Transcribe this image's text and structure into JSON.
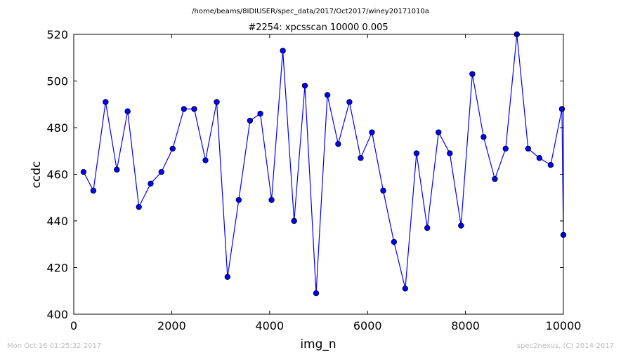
{
  "chart_data": {
    "type": "line",
    "suptitle": "/home/beams/8IDIUSER/spec_data/2017/Oct2017/winey20171010a",
    "title": "#2254: xpcsscan 10000 0.005",
    "xlabel": "img_n",
    "ylabel": "ccdc",
    "xlim": [
      0,
      10000
    ],
    "ylim": [
      400,
      520
    ],
    "xticks": [
      "0",
      "2000",
      "4000",
      "6000",
      "8000",
      "10000"
    ],
    "yticks": [
      "400",
      "420",
      "440",
      "460",
      "480",
      "500",
      "520"
    ],
    "grid": false,
    "series": [
      {
        "color": "#0000ff",
        "marker": "circle",
        "x": [
          200,
          400,
          650,
          880,
          1100,
          1330,
          1570,
          1790,
          2020,
          2250,
          2460,
          2690,
          2920,
          3140,
          3370,
          3600,
          3810,
          4040,
          4270,
          4500,
          4720,
          4950,
          5180,
          5400,
          5630,
          5860,
          6090,
          6320,
          6540,
          6770,
          7000,
          7220,
          7450,
          7680,
          7910,
          8140,
          8370,
          8600,
          8820,
          9050,
          9280,
          9510,
          9740,
          9970,
          10000
        ],
        "y": [
          461,
          453,
          491,
          462,
          487,
          446,
          456,
          461,
          471,
          488,
          488,
          466,
          491,
          416,
          449,
          483,
          486,
          449,
          513,
          440,
          498,
          409,
          494,
          473,
          491,
          467,
          478,
          453,
          431,
          411,
          469,
          437,
          478,
          469,
          438,
          503,
          476,
          458,
          471,
          520,
          471,
          467,
          464,
          488,
          434
        ]
      }
    ]
  },
  "footer": {
    "timestamp": "Mon Oct 16 01:25:32 2017",
    "credit": "spec2nexus, (C) 2014-2017"
  }
}
